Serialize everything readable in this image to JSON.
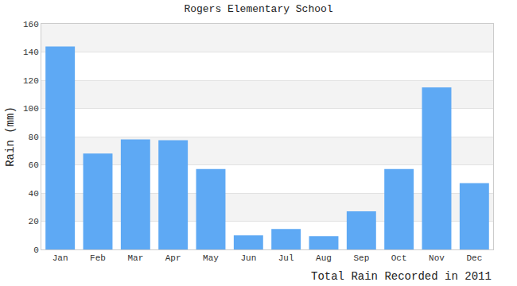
{
  "chart_data": {
    "type": "bar",
    "title": "Rogers Elementary School",
    "ylabel": "Rain (mm)",
    "xlabel": "Total Rain Recorded in 2011",
    "categories": [
      "Jan",
      "Feb",
      "Mar",
      "Apr",
      "May",
      "Jun",
      "Jul",
      "Aug",
      "Sep",
      "Oct",
      "Nov",
      "Dec"
    ],
    "values": [
      144,
      68,
      78,
      77.5,
      57,
      10,
      14.5,
      9.5,
      27,
      57,
      115,
      47
    ],
    "color": "#5ea9f4",
    "ylim": [
      0,
      160
    ],
    "yticks": [
      0,
      20,
      40,
      60,
      80,
      100,
      120,
      140,
      160
    ],
    "grid": true
  }
}
